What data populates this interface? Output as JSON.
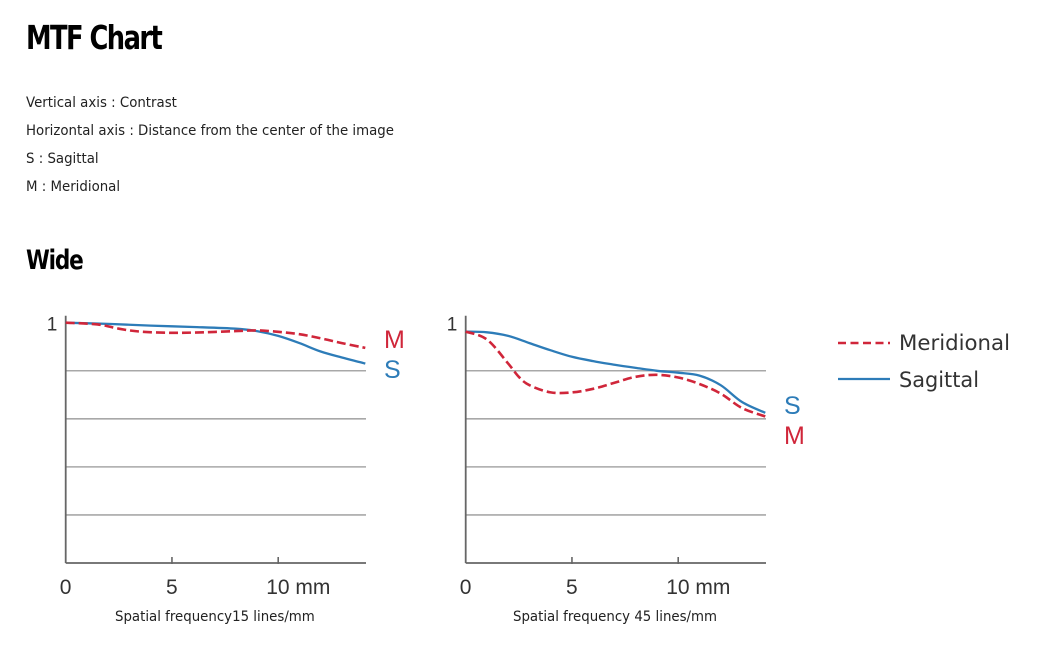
{
  "page": {
    "title": "MTF Chart",
    "description": [
      "Vertical axis : Contrast",
      "Horizontal axis : Distance from the center of the image",
      "S : Sagittal",
      "M : Meridional"
    ],
    "section_title": "Wide"
  },
  "legend": {
    "meridional": "Meridional",
    "sagittal": "Sagittal"
  },
  "colors": {
    "meridional": "#d0263a",
    "sagittal": "#2d7cb8",
    "grid": "#a8a8a8",
    "axis": "#666666"
  },
  "chart_data": [
    {
      "type": "line",
      "title": "",
      "xlabel": "Spatial frequency15 lines/mm",
      "ylabel": "Contrast",
      "xlim": [
        0,
        14.1
      ],
      "ylim": [
        0,
        1
      ],
      "x_ticks": [
        0,
        5,
        10
      ],
      "x_tick_labels": [
        "0",
        "5",
        "10 mm"
      ],
      "y_tick_labels": [
        "1"
      ],
      "grid": true,
      "grid_y": [
        0.2,
        0.4,
        0.6,
        0.8
      ],
      "end_labels": [
        "M",
        "S"
      ],
      "series": [
        {
          "name": "Sagittal",
          "key": "sagittal",
          "style": "solid",
          "x": [
            0,
            2,
            4,
            6,
            8,
            9,
            10,
            11,
            12,
            13,
            14.1
          ],
          "y": [
            1.0,
            0.995,
            0.988,
            0.982,
            0.975,
            0.965,
            0.945,
            0.915,
            0.88,
            0.855,
            0.83
          ]
        },
        {
          "name": "Meridional",
          "key": "meridional",
          "style": "dashed",
          "x": [
            0,
            1.5,
            2.5,
            3.5,
            5,
            6.5,
            8,
            9,
            10,
            11,
            12,
            13,
            14.1
          ],
          "y": [
            1.0,
            0.993,
            0.975,
            0.963,
            0.958,
            0.96,
            0.965,
            0.968,
            0.962,
            0.952,
            0.935,
            0.915,
            0.895
          ]
        }
      ]
    },
    {
      "type": "line",
      "title": "",
      "xlabel": "Spatial frequency 45 lines/mm",
      "ylabel": "Contrast",
      "xlim": [
        0,
        14.1
      ],
      "ylim": [
        0,
        1
      ],
      "x_ticks": [
        0,
        5,
        10
      ],
      "x_tick_labels": [
        "0",
        "5",
        "10 mm"
      ],
      "y_tick_labels": [
        "1"
      ],
      "grid": true,
      "grid_y": [
        0.2,
        0.4,
        0.6,
        0.8
      ],
      "end_labels": [
        "S",
        "M"
      ],
      "series": [
        {
          "name": "Sagittal",
          "key": "sagittal",
          "style": "solid",
          "x": [
            0,
            1,
            2,
            3,
            4,
            5,
            6,
            7,
            8,
            9,
            10,
            11,
            12,
            13,
            14.1
          ],
          "y": [
            0.963,
            0.96,
            0.945,
            0.915,
            0.885,
            0.858,
            0.84,
            0.825,
            0.812,
            0.8,
            0.792,
            0.78,
            0.74,
            0.67,
            0.625
          ]
        },
        {
          "name": "Meridional",
          "key": "meridional",
          "style": "dashed",
          "x": [
            0,
            1,
            2,
            2.5,
            3,
            4,
            5,
            6,
            7,
            8,
            9,
            10,
            11,
            12,
            13,
            14.1
          ],
          "y": [
            0.963,
            0.93,
            0.83,
            0.775,
            0.74,
            0.71,
            0.71,
            0.725,
            0.75,
            0.775,
            0.783,
            0.772,
            0.745,
            0.705,
            0.645,
            0.61
          ]
        }
      ]
    }
  ]
}
